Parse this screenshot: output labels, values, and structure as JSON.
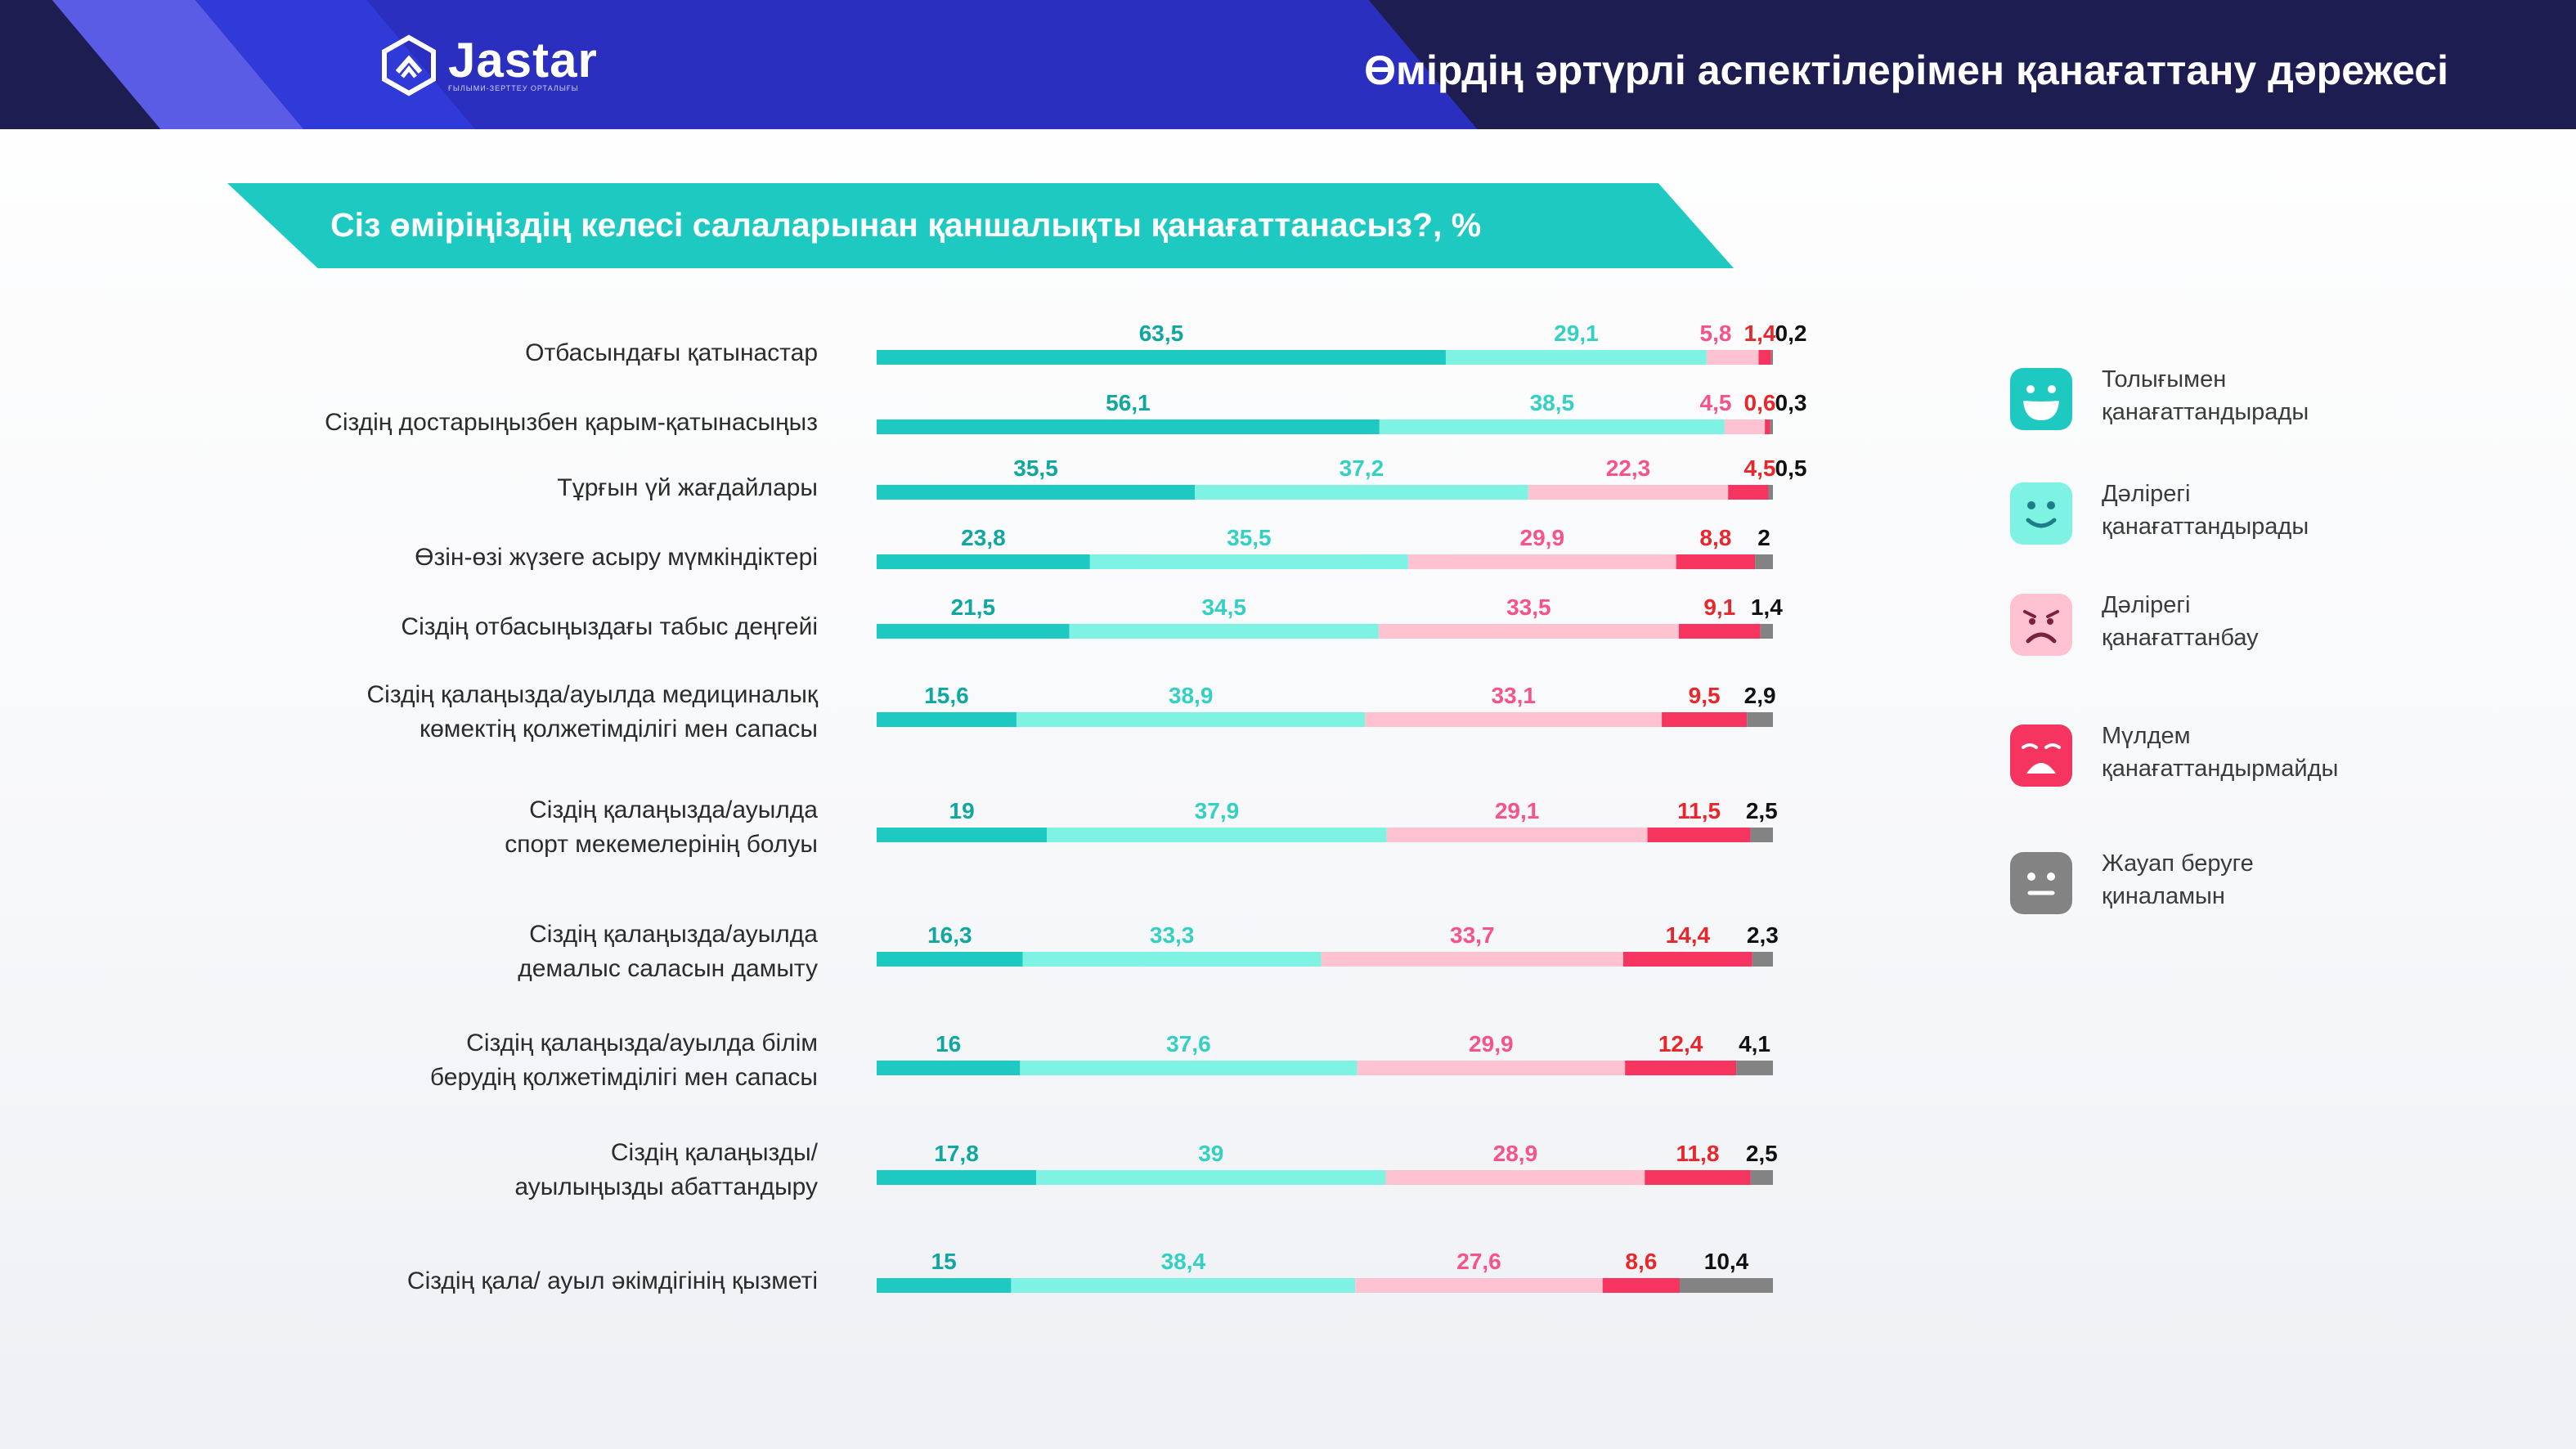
{
  "header": {
    "logo_word": "Jastar",
    "logo_sub": "ҒЫЛЫМИ-ЗЕРТТЕУ ОРТАЛЫҒЫ",
    "title": "Өмірдің әртүрлі аспектілерімен қанағаттану дәрежесі"
  },
  "colors": {
    "header_bg": "#1d1d52",
    "stripe_purple": "#5a5ce5",
    "stripe_blue": "#2f3ad9",
    "banner": "#1ec9c2",
    "series": [
      "#1ec9c2",
      "#7ef3e3",
      "#ffc2d1",
      "#f5355f",
      "#838383"
    ],
    "labels": [
      "#0fa79f",
      "#34d0c4",
      "#f7538a",
      "#e8262c",
      "#111111"
    ]
  },
  "chart_data": {
    "type": "bar",
    "orientation": "horizontal",
    "stacked": true,
    "title": "Сіз өміріңіздің келесі салаларынан қаншалықты қанағаттанасыз?, %",
    "xlim": [
      0,
      100
    ],
    "legend_position": "right",
    "categories": [
      "Отбасындағы қатынастар",
      "Сіздің достарыңызбен қарым-қатынасыңыз",
      "Тұрғын үй жағдайлары",
      "Өзін-өзі жүзеге асыру мүмкіндіктері",
      "Сіздің отбасыңыздағы табыс деңгейі",
      "Сіздің қалаңызда/ауылда медициналық көмектің қолжетімділігі мен сапасы",
      "Сіздің қалаңызда/ауылда спорт мекемелерінің болуы",
      "Сіздің қалаңызда/ауылда демалыс саласын дамыту",
      "Сіздің қалаңызда/ауылда білім берудің қолжетімділігі мен сапасы",
      "Сіздің қалаңызды/ ауылыңызды абаттандыру",
      "Сіздің қала/ ауыл әкімдігінің қызметі"
    ],
    "category_lines": [
      [
        "Отбасындағы қатынастар"
      ],
      [
        "Сіздің достарыңызбен қарым-қатынасыңыз"
      ],
      [
        "Тұрғын үй жағдайлары"
      ],
      [
        "Өзін-өзі жүзеге асыру мүмкіндіктері"
      ],
      [
        "Сіздің отбасыңыздағы табыс деңгейі"
      ],
      [
        "Сіздің қалаңызда/ауылда медициналық",
        "көмектің қолжетімділігі мен сапасы"
      ],
      [
        "Сіздің қалаңызда/ауылда",
        "спорт мекемелерінің болуы"
      ],
      [
        "Сіздің қалаңызда/ауылда",
        "демалыс саласын дамыту"
      ],
      [
        "Сіздің қалаңызда/ауылда білім",
        "берудің қолжетімділігі мен сапасы"
      ],
      [
        "Сіздің қалаңызды/",
        "ауылыңызды абаттандыру"
      ],
      [
        "Сіздің қала/ ауыл әкімдігінің қызметі"
      ]
    ],
    "value_labels": [
      [
        "63,5",
        "29,1",
        "5,8",
        "1,4",
        "0,2"
      ],
      [
        "56,1",
        "38,5",
        "4,5",
        "0,6",
        "0,3"
      ],
      [
        "35,5",
        "37,2",
        "22,3",
        "4,5",
        "0,5"
      ],
      [
        "23,8",
        "35,5",
        "29,9",
        "8,8",
        "2"
      ],
      [
        "21,5",
        "34,5",
        "33,5",
        "9,1",
        "1,4"
      ],
      [
        "15,6",
        "38,9",
        "33,1",
        "9,5",
        "2,9"
      ],
      [
        "19",
        "37,9",
        "29,1",
        "11,5",
        "2,5"
      ],
      [
        "16,3",
        "33,3",
        "33,7",
        "14,4",
        "2,3"
      ],
      [
        "16",
        "37,6",
        "29,9",
        "12,4",
        "4,1"
      ],
      [
        "17,8",
        "39",
        "28,9",
        "11,8",
        "2,5"
      ],
      [
        "15",
        "38,4",
        "27,6",
        "8,6",
        "10,4"
      ]
    ],
    "series": [
      {
        "name": "Толығымен қанағаттандырады",
        "values": [
          63.5,
          56.1,
          35.5,
          23.8,
          21.5,
          15.6,
          19,
          16.3,
          16,
          17.8,
          15
        ]
      },
      {
        "name": "Дәлірегі қанағаттандырады",
        "values": [
          29.1,
          38.5,
          37.2,
          35.5,
          34.5,
          38.9,
          37.9,
          33.3,
          37.6,
          39,
          38.4
        ]
      },
      {
        "name": "Дәлірегі қанағаттанбау",
        "values": [
          5.8,
          4.5,
          22.3,
          29.9,
          33.5,
          33.1,
          29.1,
          33.7,
          29.9,
          28.9,
          27.6
        ]
      },
      {
        "name": "Мүлдем қанағаттандырмайды",
        "values": [
          1.4,
          0.6,
          4.5,
          8.8,
          9.1,
          9.5,
          11.5,
          14.4,
          12.4,
          11.8,
          8.6
        ]
      },
      {
        "name": "Жауап беруге қиналамын",
        "values": [
          0.2,
          0.3,
          0.5,
          2,
          1.4,
          2.9,
          2.5,
          2.3,
          4.1,
          2.5,
          10.4
        ]
      }
    ]
  },
  "legend": [
    {
      "icon": "laughing-face-icon",
      "lines": [
        "Толығымен",
        "қанағаттандырады"
      ]
    },
    {
      "icon": "smiling-face-icon",
      "lines": [
        "Дәлірегі",
        "қанағаттандырады"
      ]
    },
    {
      "icon": "frowning-face-icon",
      "lines": [
        "Дәлірегі",
        "қанағаттанбау"
      ]
    },
    {
      "icon": "crying-face-icon",
      "lines": [
        "Мүлдем",
        "қанағаттандырмайды"
      ]
    },
    {
      "icon": "neutral-face-icon",
      "lines": [
        "Жауап беруге",
        "қиналамын"
      ]
    }
  ]
}
